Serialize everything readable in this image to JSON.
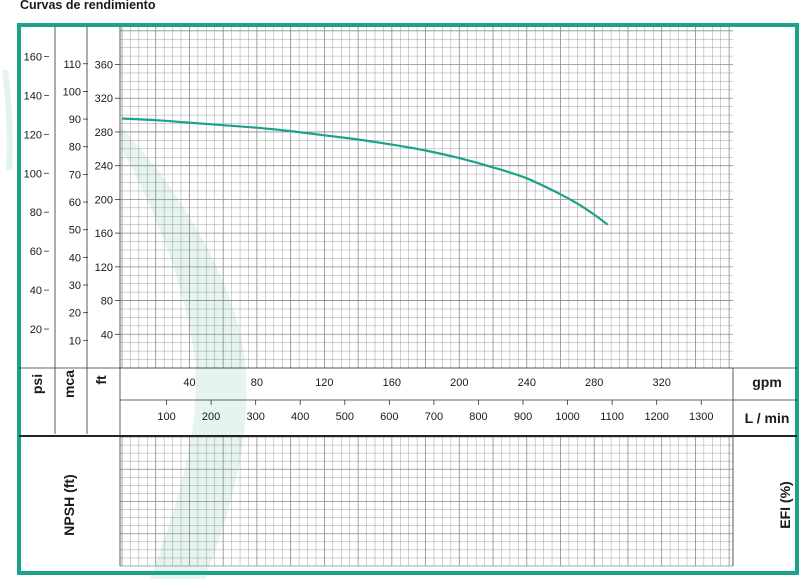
{
  "title": "Curvas de rendimiento",
  "colors": {
    "frame": "#1aa38a",
    "curve": "#1aa38a",
    "grid": "#8a8a8a",
    "watermark": "#e3f3ee",
    "text": "#1a1a1a"
  },
  "chart_data": {
    "type": "line",
    "title": "Curvas de rendimiento",
    "grid": true,
    "x_primary": {
      "label": "gpm",
      "range": [
        0,
        368
      ],
      "ticks": [
        40,
        80,
        120,
        160,
        200,
        240,
        280,
        320
      ]
    },
    "x_secondary": {
      "label": "L / min",
      "ticks": [
        100,
        200,
        300,
        400,
        500,
        600,
        700,
        800,
        900,
        1000,
        1100,
        1200,
        1300
      ]
    },
    "y_primary": {
      "label": "ft",
      "range": [
        0,
        380
      ],
      "ticks": [
        40,
        80,
        120,
        160,
        200,
        240,
        280,
        320,
        360
      ]
    },
    "y_psi": {
      "label": "psi",
      "ticks": [
        20,
        40,
        60,
        80,
        100,
        120,
        140,
        160
      ]
    },
    "y_mca": {
      "label": "mca",
      "ticks": [
        10,
        20,
        30,
        40,
        50,
        60,
        70,
        80,
        90,
        100,
        110
      ]
    },
    "lower_panel": {
      "left_label": "NPSH (ft)",
      "right_label": "EFI (%)"
    },
    "series": [
      {
        "x": [
          0,
          20,
          40,
          60,
          80,
          100,
          120,
          140,
          160,
          180,
          200,
          220,
          240,
          260,
          270,
          280,
          288
        ],
        "y": [
          296,
          294,
          291,
          288,
          285,
          281,
          276,
          271,
          265,
          258,
          249,
          238,
          225,
          206,
          195,
          182,
          170
        ]
      }
    ]
  }
}
